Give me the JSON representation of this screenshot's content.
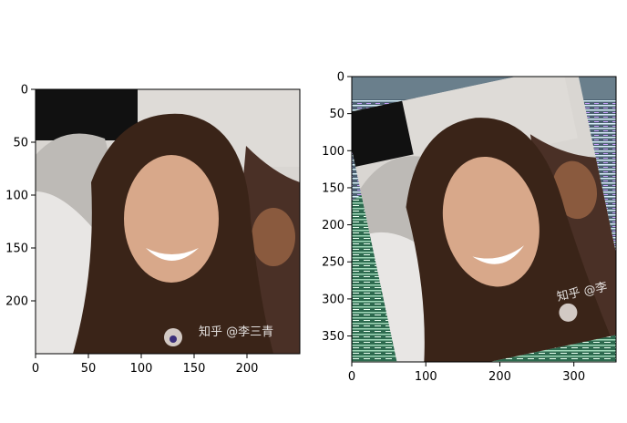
{
  "chart_data": [
    {
      "type": "image",
      "title": "",
      "xlabel": "",
      "ylabel": "",
      "xlim": [
        0,
        250
      ],
      "ylim": [
        250,
        0
      ],
      "xticks": [
        0,
        50,
        100,
        150,
        200
      ],
      "yticks": [
        0,
        50,
        100,
        150,
        200
      ],
      "watermark": "知乎 @李三青",
      "grid": false
    },
    {
      "type": "image",
      "title": "",
      "xlabel": "",
      "ylabel": "",
      "xlim": [
        0,
        357
      ],
      "ylim": [
        385,
        0
      ],
      "xticks": [
        0,
        100,
        200,
        300
      ],
      "yticks": [
        0,
        50,
        100,
        150,
        200,
        250,
        300,
        350
      ],
      "watermark": "知乎 @李",
      "grid": false
    }
  ],
  "colors": {
    "background": "#ffffff",
    "skin": "#d8a88a",
    "hair": "#3a2418",
    "wall": "#d9d6d2",
    "noise_green": "#3f8f6a"
  }
}
